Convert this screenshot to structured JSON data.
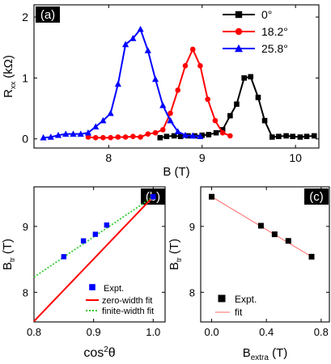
{
  "chart_data": [
    {
      "panel": "(a)",
      "type": "line",
      "xlabel": "B (T)",
      "ylabel_main": "R",
      "ylabel_sub": "xx",
      "ylabel_unit": "(kΩ)",
      "xlim": [
        7.2,
        10.25
      ],
      "ylim": [
        -0.15,
        2.2
      ],
      "xticks": [
        8,
        9,
        10
      ],
      "xtick_labels": [
        "8",
        "9",
        "10"
      ],
      "yticks": [
        0,
        1,
        2
      ],
      "ytick_labels": [
        "0",
        "1",
        "2"
      ],
      "legend_position": "top-right",
      "series": [
        {
          "name": "0°",
          "color": "#000000",
          "marker": "square",
          "x": [
            8.55,
            8.62,
            8.7,
            8.77,
            8.85,
            8.92,
            9.0,
            9.07,
            9.15,
            9.22,
            9.3,
            9.37,
            9.45,
            9.52,
            9.6,
            9.67,
            9.75,
            9.82,
            9.9,
            9.97,
            10.05,
            10.12,
            10.2
          ],
          "y": [
            0.02,
            0.04,
            0.05,
            0.04,
            0.05,
            0.05,
            0.06,
            0.07,
            0.1,
            0.15,
            0.38,
            0.57,
            1.0,
            1.02,
            0.68,
            0.3,
            0.03,
            0.04,
            0.05,
            0.04,
            0.03,
            0.04,
            0.05
          ]
        },
        {
          "name": "18.2°",
          "color": "#ff0000",
          "marker": "circle",
          "x": [
            7.78,
            7.86,
            7.94,
            8.02,
            8.1,
            8.18,
            8.26,
            8.34,
            8.42,
            8.5,
            8.58,
            8.66,
            8.74,
            8.82,
            8.9,
            8.98,
            9.06,
            9.14,
            9.22,
            9.3
          ],
          "y": [
            0.03,
            0.02,
            0.02,
            0.02,
            0.03,
            0.03,
            0.04,
            0.03,
            0.08,
            0.1,
            0.15,
            0.42,
            0.8,
            1.2,
            1.47,
            1.2,
            0.65,
            0.3,
            0.1,
            0.05
          ]
        },
        {
          "name": "25.8°",
          "color": "#0000ff",
          "marker": "triangle",
          "x": [
            7.3,
            7.38,
            7.46,
            7.54,
            7.62,
            7.7,
            7.78,
            7.86,
            7.94,
            8.02,
            8.1,
            8.18,
            8.26,
            8.34,
            8.42,
            8.5,
            8.58,
            8.66,
            8.74,
            8.82,
            8.9,
            8.98
          ],
          "y": [
            0.02,
            0.03,
            0.06,
            0.08,
            0.08,
            0.08,
            0.1,
            0.2,
            0.3,
            0.42,
            0.9,
            1.55,
            1.65,
            1.8,
            1.45,
            0.98,
            0.55,
            0.3,
            0.12,
            0.06,
            0.05,
            0.04
          ]
        }
      ]
    },
    {
      "panel": "(b)",
      "type": "scatter",
      "xlabel": "cos²θ",
      "ylabel_main": "B",
      "ylabel_sub": "tr",
      "ylabel_unit": "(T)",
      "xlim": [
        0.8,
        1.02
      ],
      "ylim": [
        7.55,
        9.6
      ],
      "xticks": [
        0.8,
        0.9,
        1.0
      ],
      "xtick_labels": [
        "0.8",
        "0.9",
        "1.0"
      ],
      "yticks": [
        8,
        9
      ],
      "ytick_labels": [
        "8",
        "9"
      ],
      "legend_position": "bottom-right",
      "points": {
        "name": "Expt.",
        "color": "#0000ff",
        "x": [
          0.85,
          0.883,
          0.903,
          0.922,
          1.0
        ],
        "y": [
          8.54,
          8.78,
          8.88,
          9.02,
          9.45
        ]
      },
      "lines": [
        {
          "name": "zero-width fit",
          "color": "#ff0000",
          "style": "solid",
          "x": [
            0.8,
            1.0
          ],
          "y": [
            7.56,
            9.45
          ]
        },
        {
          "name": "finite-width fit",
          "color": "#33cc33",
          "style": "dotted",
          "x": [
            0.8,
            1.0
          ],
          "y": [
            8.23,
            9.45
          ]
        }
      ]
    },
    {
      "panel": "(c)",
      "type": "scatter",
      "xlabel_main": "B",
      "xlabel_sub": "extra",
      "xlabel_unit": "(T)",
      "ylabel_main": "B",
      "ylabel_sub": "tr",
      "ylabel_unit": "(T)",
      "xlim": [
        -0.08,
        0.86
      ],
      "ylim": [
        7.55,
        9.6
      ],
      "xticks": [
        0.0,
        0.4,
        0.8
      ],
      "xtick_labels": [
        "0.0",
        "0.4",
        "0.8"
      ],
      "yticks": [
        8,
        9
      ],
      "ytick_labels": [
        "8",
        "9"
      ],
      "legend_position": "bottom-right",
      "points": {
        "name": "Expt.",
        "color": "#000000",
        "x": [
          0.0,
          0.36,
          0.46,
          0.56,
          0.73
        ],
        "y": [
          9.45,
          9.01,
          8.88,
          8.78,
          8.54
        ]
      },
      "lines": [
        {
          "name": "fit",
          "color": "#ff6666",
          "style": "solid",
          "x": [
            0.0,
            0.73
          ],
          "y": [
            9.45,
            8.54
          ]
        }
      ]
    }
  ]
}
